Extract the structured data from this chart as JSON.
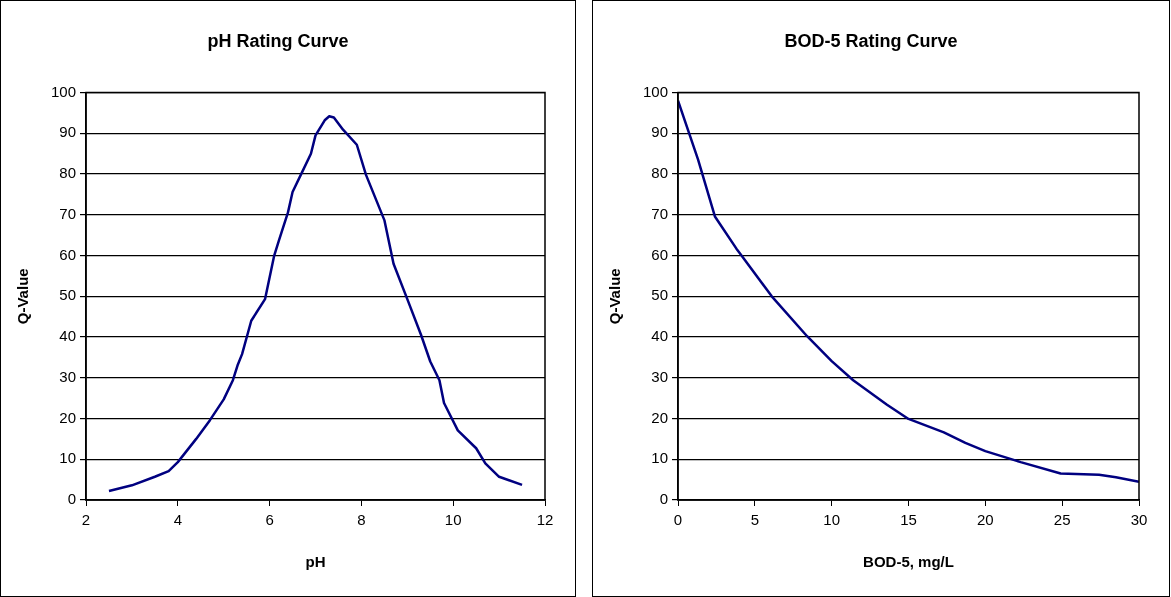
{
  "chart_data": [
    {
      "type": "line",
      "title": "pH Rating Curve",
      "xlabel": "pH",
      "ylabel": "Q-Value",
      "xlim": [
        2,
        12
      ],
      "xticks": [
        2,
        4,
        6,
        8,
        10,
        12
      ],
      "ylim": [
        0,
        100
      ],
      "yticks": [
        0,
        10,
        20,
        30,
        40,
        50,
        60,
        70,
        80,
        90,
        100
      ],
      "grid": "y",
      "legend": false,
      "marker": "none",
      "line_style": "solid",
      "series": [
        {
          "color": "#000080",
          "x": [
            2.5,
            3.0,
            3.5,
            3.8,
            4.0,
            4.4,
            4.7,
            5.0,
            5.2,
            5.3,
            5.4,
            5.6,
            5.9,
            6.1,
            6.2,
            6.4,
            6.5,
            6.7,
            6.9,
            7.0,
            7.2,
            7.3,
            7.4,
            7.6,
            7.9,
            8.1,
            8.5,
            8.7,
            9.0,
            9.3,
            9.5,
            9.7,
            9.8,
            10.1,
            10.5,
            10.7,
            11.0,
            11.5
          ],
          "values": [
            2.2,
            3.6,
            5.7,
            7.1,
            9.3,
            15,
            19.6,
            24.7,
            29.4,
            33,
            35.8,
            44,
            49.3,
            60,
            63.6,
            70.6,
            75.6,
            80.3,
            85,
            89.5,
            93.2,
            94.2,
            93.9,
            90.9,
            87.2,
            79.8,
            68.7,
            58,
            49.3,
            40.5,
            34,
            29.4,
            23.8,
            17.1,
            12.7,
            9,
            5.7,
            3.7
          ]
        }
      ]
    },
    {
      "type": "line",
      "title": "BOD-5 Rating Curve",
      "xlabel": "BOD-5, mg/L",
      "ylabel": "Q-Value",
      "xlim": [
        0,
        30
      ],
      "xticks": [
        0,
        5,
        10,
        15,
        20,
        25,
        30
      ],
      "ylim": [
        0,
        100
      ],
      "yticks": [
        0,
        10,
        20,
        30,
        40,
        50,
        60,
        70,
        80,
        90,
        100
      ],
      "grid": "y",
      "legend": false,
      "marker": "none",
      "line_style": "solid",
      "series": [
        {
          "color": "#000080",
          "x": [
            0,
            1.3,
            2.4,
            3.8,
            6.1,
            8.4,
            10,
            11.4,
            13.6,
            15,
            17.3,
            18.7,
            20,
            22.3,
            24.9,
            27.4,
            28.5,
            30
          ],
          "values": [
            98,
            83.6,
            69.6,
            61.7,
            50,
            40.2,
            34.1,
            29.4,
            23.4,
            19.9,
            16.6,
            14,
            12,
            9.3,
            6.5,
            6.2,
            5.6,
            4.5
          ]
        }
      ]
    }
  ]
}
